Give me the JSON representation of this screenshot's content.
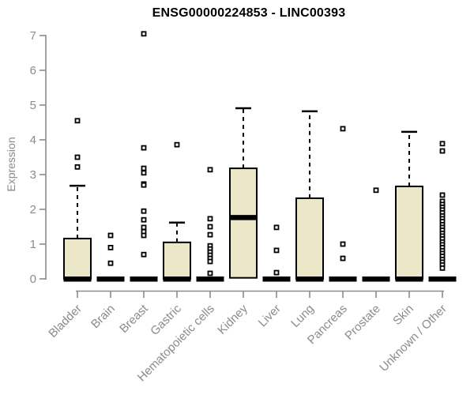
{
  "chart_data": {
    "type": "boxplot",
    "title": "ENSG00000224853 - LINC00393",
    "ylabel": "Expression",
    "xlabel": "",
    "ylim": [
      0,
      7
    ],
    "yticks": [
      0,
      1,
      2,
      3,
      4,
      5,
      6,
      7
    ],
    "grid": false,
    "legend": "none",
    "colors": {
      "box_fill": "#EDE7C9",
      "box_border": "#000000",
      "median": "#000000",
      "whisker": "#000000",
      "outlier": "#000000",
      "axis": "#8b8b8b",
      "tick_label": "#8b8b8b",
      "title": "#000000",
      "background": "#ffffff"
    },
    "categories": [
      "Bladder",
      "Brain",
      "Breast",
      "Gastric",
      "Hematopoietic cells",
      "Kidney",
      "Liver",
      "Lung",
      "Pancreas",
      "Prostate",
      "Skin",
      "Unknown / Other"
    ],
    "series": [
      {
        "name": "Bladder",
        "q1": 0,
        "median": 0,
        "q3": 1.16,
        "whisker_low": 0,
        "whisker_high": 2.68,
        "outliers": [
          4.55,
          3.5,
          3.22
        ]
      },
      {
        "name": "Brain",
        "q1": 0,
        "median": 0,
        "q3": 0,
        "whisker_low": 0,
        "whisker_high": 0,
        "outliers": [
          1.25,
          0.9,
          0.45
        ]
      },
      {
        "name": "Breast",
        "q1": 0,
        "median": 0,
        "q3": 0,
        "whisker_low": 0,
        "whisker_high": 0,
        "outliers": [
          7.05,
          3.77,
          3.18,
          3.05,
          2.73,
          2.7,
          1.95,
          1.7,
          1.48,
          1.36,
          1.25,
          0.7
        ]
      },
      {
        "name": "Gastric",
        "q1": 0,
        "median": 0,
        "q3": 1.05,
        "whisker_low": 0,
        "whisker_high": 1.62,
        "outliers": [
          3.86
        ]
      },
      {
        "name": "Hematopoietic cells",
        "q1": 0,
        "median": 0,
        "q3": 0,
        "whisker_low": 0,
        "whisker_high": 0,
        "outliers": [
          3.14,
          1.73,
          1.5,
          1.27,
          0.95,
          0.86,
          0.77,
          0.68,
          0.59,
          0.5,
          0.16
        ]
      },
      {
        "name": "Kidney",
        "q1": 0.03,
        "median": 1.77,
        "q3": 3.18,
        "whisker_low": 0.03,
        "whisker_high": 4.91,
        "outliers": []
      },
      {
        "name": "Liver",
        "q1": 0,
        "median": 0,
        "q3": 0,
        "whisker_low": 0,
        "whisker_high": 0,
        "outliers": [
          1.48,
          0.82,
          0.18
        ]
      },
      {
        "name": "Lung",
        "q1": 0,
        "median": 0,
        "q3": 2.32,
        "whisker_low": 0,
        "whisker_high": 4.82,
        "outliers": []
      },
      {
        "name": "Pancreas",
        "q1": 0,
        "median": 0,
        "q3": 0,
        "whisker_low": 0,
        "whisker_high": 0,
        "outliers": [
          4.32,
          1.0,
          0.59
        ]
      },
      {
        "name": "Prostate",
        "q1": 0,
        "median": 0,
        "q3": 0,
        "whisker_low": 0,
        "whisker_high": 0,
        "outliers": [
          2.55
        ]
      },
      {
        "name": "Skin",
        "q1": 0,
        "median": 0,
        "q3": 2.66,
        "whisker_low": 0,
        "whisker_high": 4.23,
        "outliers": []
      },
      {
        "name": "Unknown / Other",
        "q1": 0,
        "median": 0,
        "q3": 0,
        "whisker_low": 0,
        "whisker_high": 0,
        "outliers": [
          3.89,
          3.68,
          2.41,
          2.23,
          2.14,
          2.06,
          1.98,
          1.9,
          1.81,
          1.73,
          1.65,
          1.56,
          1.48,
          1.4,
          1.31,
          1.23,
          1.15,
          1.06,
          0.98,
          0.9,
          0.81,
          0.73,
          0.65,
          0.56,
          0.48,
          0.4,
          0.31
        ]
      }
    ]
  }
}
